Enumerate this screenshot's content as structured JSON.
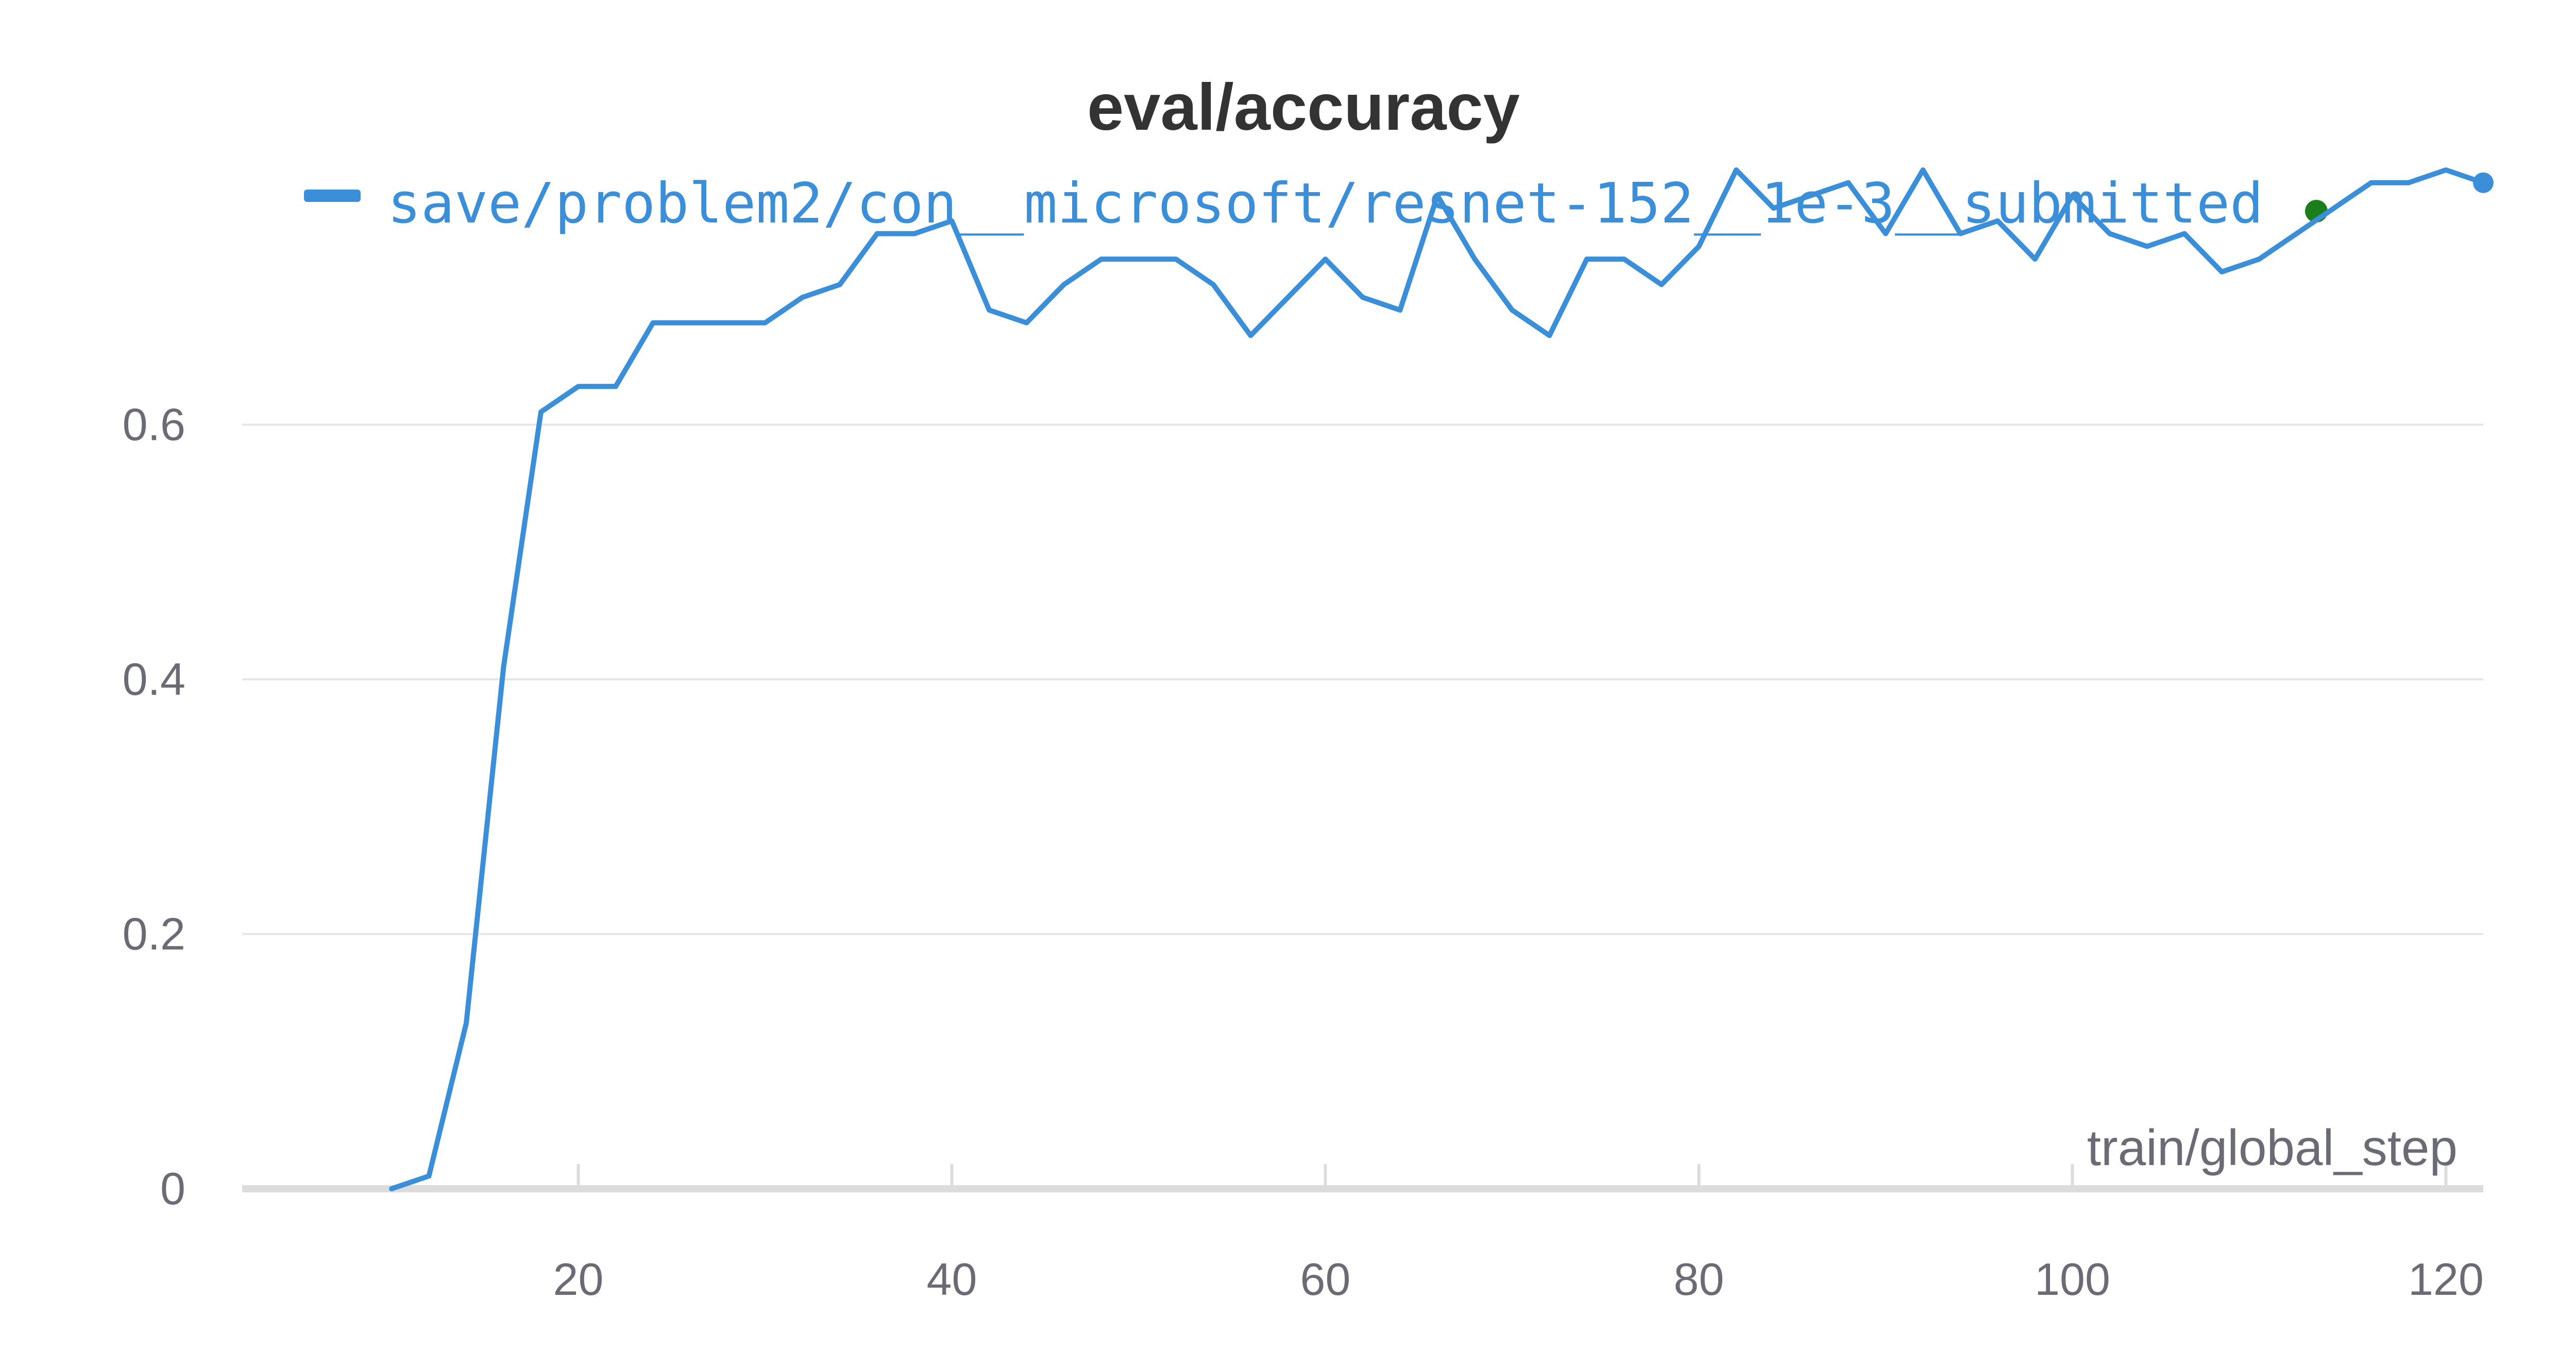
{
  "chart_data": {
    "type": "line",
    "title": "eval/accuracy",
    "xlabel": "train/global_step",
    "ylabel": "",
    "xlim": [
      2,
      122
    ],
    "ylim": [
      0,
      0.8
    ],
    "x_ticks": [
      20,
      40,
      60,
      80,
      100,
      120
    ],
    "y_ticks": [
      0,
      0.2,
      0.4,
      0.6
    ],
    "x_tick_labels": [
      "20",
      "40",
      "60",
      "80",
      "100",
      "120"
    ],
    "y_tick_labels": [
      "0",
      "0.2",
      "0.4",
      "0.6"
    ],
    "grid": "horizontal",
    "legend_placement": "top",
    "series": [
      {
        "name": "save/problem2/con__microsoft/resnet-152__1e-3__submitted",
        "color": "#3b8fd9",
        "x": [
          10,
          12,
          14,
          16,
          18,
          20,
          22,
          24,
          26,
          28,
          30,
          32,
          34,
          36,
          38,
          40,
          42,
          44,
          46,
          48,
          50,
          52,
          54,
          56,
          58,
          60,
          62,
          64,
          66,
          68,
          70,
          72,
          74,
          76,
          78,
          80,
          82,
          84,
          86,
          88,
          90,
          92,
          94,
          96,
          98,
          100,
          102,
          104,
          106,
          108,
          110,
          112,
          114,
          116,
          118,
          120,
          122
        ],
        "values": [
          0,
          0.01,
          0.13,
          0.41,
          0.61,
          0.63,
          0.63,
          0.68,
          0.68,
          0.68,
          0.68,
          0.7,
          0.71,
          0.75,
          0.75,
          0.76,
          0.69,
          0.68,
          0.71,
          0.73,
          0.73,
          0.73,
          0.71,
          0.67,
          0.7,
          0.73,
          0.7,
          0.69,
          0.78,
          0.73,
          0.69,
          0.67,
          0.73,
          0.73,
          0.71,
          0.74,
          0.8,
          0.77,
          0.78,
          0.79,
          0.75,
          0.8,
          0.75,
          0.76,
          0.73,
          0.78,
          0.75,
          0.74,
          0.75,
          0.72,
          0.73,
          0.75,
          0.77,
          0.79,
          0.79,
          0.8,
          0.79
        ]
      }
    ],
    "status_dot_color": "#1a7f1a"
  }
}
